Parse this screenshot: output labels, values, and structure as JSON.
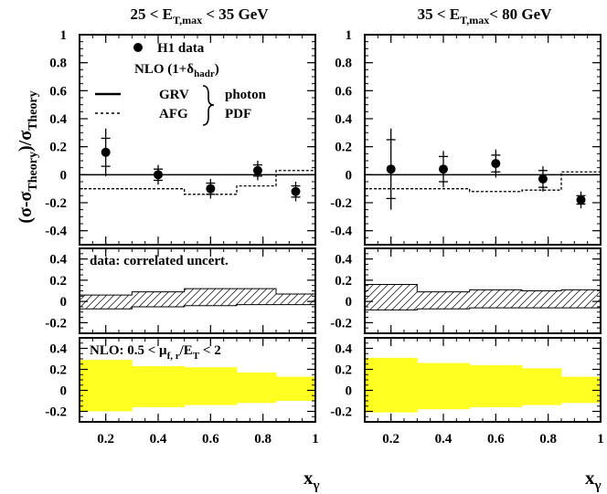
{
  "chart_data": {
    "type": "multi-panel",
    "y_axis_title": {
      "main": "(σ-σ",
      "sub1": "Theory",
      "mid": ")/σ",
      "sub2": "Theory"
    },
    "x_axis_title": {
      "main": "x",
      "sub": "γ"
    },
    "x_range": [
      0.1,
      1.0
    ],
    "x_ticks": [
      0.2,
      0.4,
      0.6,
      0.8,
      1
    ],
    "x_tick_labels": [
      "0.2",
      "0.4",
      "0.6",
      "0.8",
      "1"
    ],
    "top_ylim": [
      -0.5,
      1.0
    ],
    "top_y_ticks": [
      1,
      0.8,
      0.6,
      0.4,
      0.2,
      0,
      -0.2,
      -0.4
    ],
    "top_y_tick_labels": [
      "1",
      "0.8",
      "0.6",
      "0.4",
      "0.2",
      "0",
      "-0.2",
      "-0.4"
    ],
    "sub_ylim": [
      -0.3,
      0.5
    ],
    "sub_y_ticks": [
      0.4,
      0.2,
      0,
      -0.2
    ],
    "sub_y_tick_labels": [
      "0.4",
      "0.2",
      "0",
      "-0.2"
    ],
    "legend": {
      "h1": "H1 data",
      "nlo_main": "NLO (1+δ",
      "nlo_sub": "hadr",
      "nlo_close": ")",
      "grv": "GRV",
      "afg": "AFG",
      "pdf_line1": "photon",
      "pdf_line2": "PDF"
    },
    "middle_label": "data: correlated uncert.",
    "bottom_label": {
      "a": "NLO: 0.5 < μ",
      "b": "f, r",
      "c": "/E",
      "d": "T",
      "e": " < 2"
    },
    "hatch_color": "#333333",
    "band_color": "#ffff22",
    "bin_edges": [
      0.1,
      0.3,
      0.5,
      0.7,
      0.85,
      1.0
    ],
    "panels": [
      {
        "title": {
          "a": "25 < E",
          "b": "T,max",
          "c": " < 35 GeV"
        },
        "data_points": [
          {
            "x": 0.2,
            "y": 0.16,
            "err_stat": 0.1,
            "err_tot": 0.17
          },
          {
            "x": 0.4,
            "y": 0.0,
            "err_stat": 0.04,
            "err_tot": 0.07
          },
          {
            "x": 0.6,
            "y": -0.1,
            "err_stat": 0.04,
            "err_tot": 0.07
          },
          {
            "x": 0.78,
            "y": 0.03,
            "err_stat": 0.04,
            "err_tot": 0.07
          },
          {
            "x": 0.925,
            "y": -0.12,
            "err_stat": 0.04,
            "err_tot": 0.07
          }
        ],
        "afg": [
          -0.1,
          -0.1,
          -0.14,
          -0.08,
          0.03
        ],
        "correlated_uncert": [
          [
            -0.07,
            0.06
          ],
          [
            -0.05,
            0.09
          ],
          [
            -0.04,
            0.12
          ],
          [
            -0.03,
            0.12
          ],
          [
            -0.03,
            0.07
          ]
        ],
        "nlo_scale_band": [
          [
            -0.2,
            0.29
          ],
          [
            -0.16,
            0.23
          ],
          [
            -0.14,
            0.22
          ],
          [
            -0.12,
            0.17
          ],
          [
            -0.1,
            0.13
          ]
        ]
      },
      {
        "title": {
          "a": "35 < E",
          "b": "T,max",
          "c": "< 80 GeV"
        },
        "data_points": [
          {
            "x": 0.2,
            "y": 0.04,
            "err_stat": 0.21,
            "err_tot": 0.29
          },
          {
            "x": 0.4,
            "y": 0.04,
            "err_stat": 0.09,
            "err_tot": 0.13
          },
          {
            "x": 0.6,
            "y": 0.08,
            "err_stat": 0.06,
            "err_tot": 0.1
          },
          {
            "x": 0.78,
            "y": -0.03,
            "err_stat": 0.06,
            "err_tot": 0.09
          },
          {
            "x": 0.925,
            "y": -0.18,
            "err_stat": 0.03,
            "err_tot": 0.06
          }
        ],
        "afg": [
          -0.1,
          -0.1,
          -0.12,
          -0.11,
          0.02
        ],
        "correlated_uncert": [
          [
            -0.08,
            0.16
          ],
          [
            -0.07,
            0.09
          ],
          [
            -0.06,
            0.11
          ],
          [
            -0.06,
            0.1
          ],
          [
            -0.06,
            0.11
          ]
        ],
        "nlo_scale_band": [
          [
            -0.21,
            0.31
          ],
          [
            -0.18,
            0.26
          ],
          [
            -0.16,
            0.24
          ],
          [
            -0.14,
            0.21
          ],
          [
            -0.12,
            0.13
          ]
        ]
      }
    ]
  }
}
